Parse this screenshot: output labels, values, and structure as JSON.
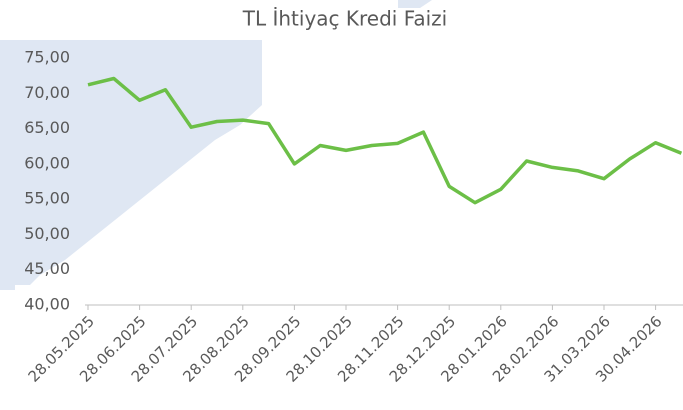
{
  "chart_data": {
    "type": "line",
    "title": "TL İhtiyaç Kredi Faizi",
    "categories": [
      "28.05.2025",
      null,
      "28.06.2025",
      null,
      "28.07.2025",
      null,
      "28.08.2025",
      null,
      "28.09.2025",
      null,
      "28.10.2025",
      null,
      "28.11.2025",
      null,
      "28.12.2025",
      null,
      "28.01.2026",
      null,
      "28.02.2026",
      null,
      "31.03.2026",
      null,
      "30.04.2026",
      null
    ],
    "series": [
      {
        "name": "TL İhtiyaç Kredi Faizi",
        "color": "#6cbf47",
        "values": [
          71.2,
          72.1,
          69.0,
          70.5,
          65.2,
          66.0,
          66.2,
          65.7,
          60.0,
          62.6,
          61.9,
          62.6,
          62.9,
          64.5,
          56.8,
          54.5,
          56.4,
          60.4,
          59.5,
          59.0,
          57.9,
          60.7,
          63.0,
          61.5
        ]
      }
    ],
    "ylim": [
      40,
      75
    ],
    "yticks": [
      {
        "value": 40,
        "label": "40,00"
      },
      {
        "value": 45,
        "label": "45,00"
      },
      {
        "value": 50,
        "label": "50,00"
      },
      {
        "value": 55,
        "label": "55,00"
      },
      {
        "value": 60,
        "label": "60,00"
      },
      {
        "value": 65,
        "label": "65,00"
      },
      {
        "value": 70,
        "label": "70,00"
      },
      {
        "value": 75,
        "label": "75,00"
      }
    ]
  }
}
